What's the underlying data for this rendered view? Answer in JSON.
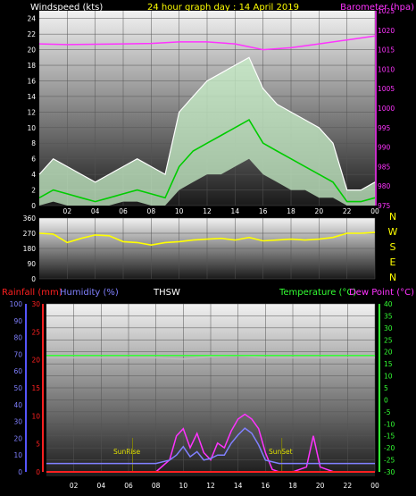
{
  "title": "24 hour graph day : 14 April 2019",
  "chart_data": [
    {
      "type": "line",
      "name": "wind-baro",
      "ylabel_left": "Windspeed (kts)",
      "ylabel_right": "Barometer (hpa)",
      "left_ticks": [
        "0",
        "2",
        "4",
        "6",
        "8",
        "10",
        "12",
        "14",
        "16",
        "18",
        "20",
        "22",
        "24"
      ],
      "right_ticks": [
        "975",
        "980",
        "985",
        "990",
        "995",
        "1000",
        "1005",
        "1010",
        "1015",
        "1020",
        "1025"
      ],
      "x_ticks": [
        "02",
        "04",
        "06",
        "08",
        "10",
        "12",
        "14",
        "16",
        "18",
        "20",
        "22",
        "00"
      ],
      "ylim_left": [
        0,
        25
      ],
      "ylim_right": [
        975,
        1025
      ],
      "barometer": {
        "x": [
          0,
          2,
          4,
          6,
          8,
          10,
          12,
          14,
          16,
          18,
          20,
          22,
          24
        ],
        "y": [
          1016.5,
          1016.3,
          1016.4,
          1016.5,
          1016.6,
          1017,
          1017,
          1016.5,
          1015,
          1015.5,
          1016.5,
          1017.5,
          1018.5
        ]
      },
      "wind_avg": {
        "x": [
          0,
          1,
          2,
          3,
          4,
          5,
          6,
          7,
          8,
          9,
          10,
          11,
          12,
          13,
          14,
          15,
          16,
          17,
          18,
          19,
          20,
          21,
          22,
          23,
          24
        ],
        "y": [
          1,
          2,
          1.5,
          1,
          0.5,
          1,
          1.5,
          2,
          1.5,
          1,
          5,
          7,
          8,
          9,
          10,
          11,
          8,
          7,
          6,
          5,
          4,
          3,
          0.5,
          0.5,
          1
        ]
      },
      "wind_gust": {
        "x": [
          0,
          1,
          2,
          3,
          4,
          5,
          6,
          7,
          8,
          9,
          10,
          11,
          12,
          13,
          14,
          15,
          16,
          17,
          18,
          19,
          20,
          21,
          22,
          23,
          24
        ],
        "y": [
          4,
          6,
          5,
          4,
          3,
          4,
          5,
          6,
          5,
          4,
          12,
          14,
          16,
          17,
          18,
          19,
          15,
          13,
          12,
          11,
          10,
          8,
          2,
          2,
          3
        ]
      },
      "wind_low": {
        "x": [
          0,
          1,
          2,
          3,
          4,
          5,
          6,
          7,
          8,
          9,
          10,
          11,
          12,
          13,
          14,
          15,
          16,
          17,
          18,
          19,
          20,
          21,
          22,
          23,
          24
        ],
        "y": [
          0,
          0.5,
          0,
          0,
          0,
          0,
          0.5,
          0.5,
          0,
          0,
          2,
          3,
          4,
          4,
          5,
          6,
          4,
          3,
          2,
          2,
          1,
          1,
          0,
          0,
          0
        ]
      }
    },
    {
      "type": "line",
      "name": "wind-direction",
      "left_ticks": [
        "0",
        "90",
        "180",
        "270",
        "360"
      ],
      "compass": [
        "N",
        "W",
        "S",
        "E",
        "N"
      ],
      "ylim": [
        0,
        360
      ],
      "direction": {
        "x": [
          0,
          1,
          2,
          3,
          4,
          5,
          6,
          7,
          8,
          9,
          10,
          11,
          12,
          13,
          14,
          15,
          16,
          17,
          18,
          19,
          20,
          21,
          22,
          23,
          24
        ],
        "y": [
          270,
          265,
          215,
          240,
          260,
          255,
          220,
          215,
          200,
          215,
          220,
          230,
          235,
          240,
          230,
          245,
          225,
          230,
          235,
          230,
          235,
          245,
          270,
          270,
          275
        ]
      }
    },
    {
      "type": "line",
      "name": "temp-rain-humidity",
      "label_rainfall": "Rainfall (mm)",
      "label_humidity": "Humidity (%)",
      "label_thsw": "THSW",
      "label_temperature": "Temperature (°C)",
      "label_dewpoint": "Dew Point (°C)",
      "rain_ticks": [
        "0",
        "5",
        "10",
        "15",
        "20",
        "25",
        "30"
      ],
      "humidity_ticks": [
        "0",
        "10",
        "20",
        "30",
        "40",
        "50",
        "60",
        "70",
        "80",
        "90",
        "100"
      ],
      "temp_ticks": [
        "-30",
        "-25",
        "-20",
        "-15",
        "-10",
        "-5",
        "0",
        "5",
        "10",
        "15",
        "20",
        "25",
        "30",
        "35",
        "40"
      ],
      "x_ticks": [
        "02",
        "04",
        "06",
        "08",
        "10",
        "12",
        "14",
        "16",
        "18",
        "20",
        "22",
        "00"
      ],
      "sunrise_label": "SunRise",
      "sunset_label": "SunSet",
      "sunrise_hour": 6.3,
      "sunset_hour": 17.2,
      "temperature": {
        "x": [
          0,
          4,
          8,
          12,
          16,
          20,
          24
        ],
        "y": [
          18.5,
          18.5,
          18.5,
          18.5,
          18.5,
          18.5,
          18.5
        ]
      },
      "dewpoint": {
        "x": [
          0,
          4,
          8,
          10,
          12,
          14,
          16,
          20,
          24
        ],
        "y": [
          17.5,
          17.5,
          17.5,
          17,
          18,
          18.5,
          17.5,
          17.5,
          17.5
        ]
      },
      "thsw": {
        "x": [
          0,
          8,
          9,
          9.5,
          10,
          10.5,
          11,
          11.5,
          12,
          12.5,
          13,
          13.5,
          14,
          14.5,
          15,
          15.5,
          16,
          16.5,
          17,
          18,
          19,
          19.5,
          20,
          20.5,
          21,
          24
        ],
        "y": [
          -30,
          -30,
          -25,
          -15,
          -12,
          -20,
          -14,
          -22,
          -25,
          -18,
          -20,
          -13,
          -8,
          -6,
          -8,
          -12,
          -22,
          -29,
          -30,
          -30,
          -28,
          -15,
          -28,
          -29,
          -30,
          -30
        ]
      },
      "humidity": {
        "x": [
          0,
          8,
          9,
          9.5,
          10,
          10.5,
          11,
          11.5,
          12,
          12.5,
          13,
          13.5,
          14,
          14.5,
          15,
          15.5,
          16,
          17,
          24
        ],
        "y": [
          5,
          5,
          7,
          10,
          15,
          9,
          12,
          7,
          8,
          10,
          10,
          17,
          22,
          26,
          23,
          16,
          7,
          5,
          5
        ]
      },
      "rainfall": {
        "x": [
          0,
          24
        ],
        "y": [
          0,
          0
        ]
      }
    }
  ]
}
